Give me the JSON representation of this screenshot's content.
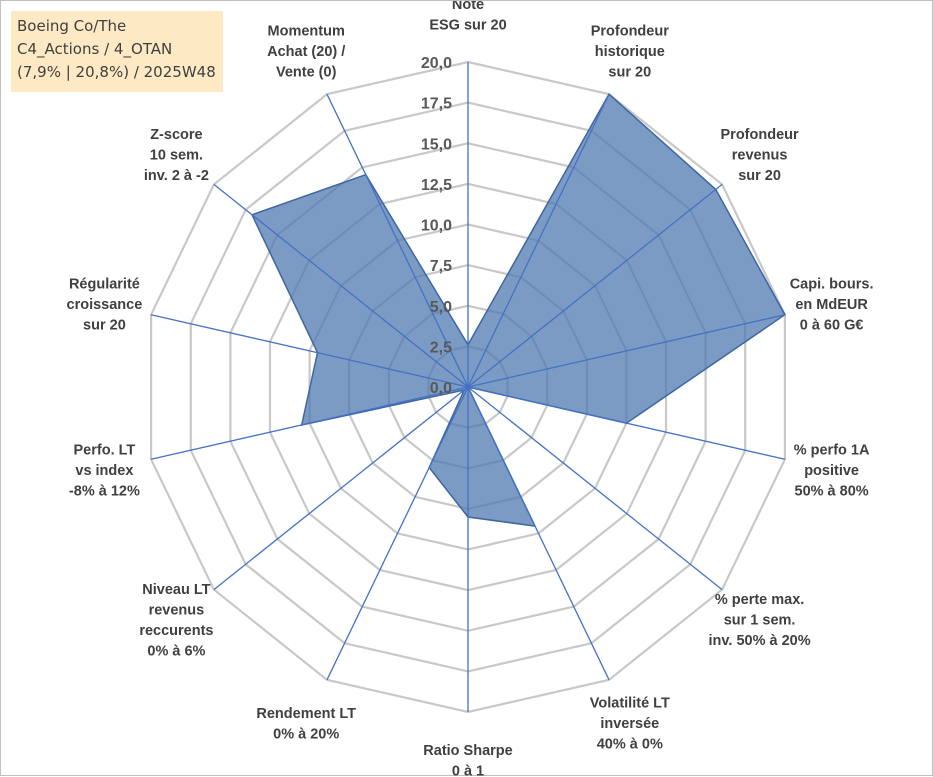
{
  "title_box": {
    "line1": "Boeing Co/The",
    "line2": "C4_Actions / 4_OTAN",
    "line3": "(7,9% | 20,8%) / 2025W48"
  },
  "chart_data": {
    "type": "radar",
    "range": [
      0,
      20
    ],
    "tick_step": 2.5,
    "ticks": [
      "0,0",
      "2,5",
      "5,0",
      "7,5",
      "10,0",
      "12,5",
      "15,0",
      "17,5",
      "20,0"
    ],
    "axes": [
      {
        "lines": [
          "Note",
          "ESG sur 20"
        ]
      },
      {
        "lines": [
          "Profondeur",
          "historique",
          "sur 20"
        ]
      },
      {
        "lines": [
          "Profondeur",
          "revenus",
          "sur 20"
        ]
      },
      {
        "lines": [
          "Capi. bours.",
          "en MdEUR",
          "0 à 60 G€"
        ]
      },
      {
        "lines": [
          "% perfo 1A",
          "positive",
          "50% à 80%"
        ]
      },
      {
        "lines": [
          "% perte max.",
          "sur 1 sem.",
          "inv. 50% à 20%"
        ]
      },
      {
        "lines": [
          "Volatilité LT",
          "inversée",
          "40% à 0%"
        ]
      },
      {
        "lines": [
          "Ratio Sharpe",
          "0 à 1"
        ]
      },
      {
        "lines": [
          "Rendement LT",
          "0% à 20%"
        ]
      },
      {
        "lines": [
          "Niveau LT",
          "revenus",
          "reccurents",
          "0% à 6%"
        ]
      },
      {
        "lines": [
          "Perfo. LT",
          "vs index",
          "-8% à 12%"
        ]
      },
      {
        "lines": [
          "Régularité",
          "croissance",
          "sur 20"
        ]
      },
      {
        "lines": [
          "Z-score",
          "10 sem.",
          "inv. 2 à -2"
        ]
      },
      {
        "lines": [
          "Momentum",
          "Achat (20) /",
          "Vente (0)"
        ]
      }
    ],
    "values": [
      2.6,
      20.0,
      19.5,
      20.0,
      10.0,
      0.0,
      9.5,
      8.0,
      5.5,
      0.3,
      10.5,
      9.5,
      17.0,
      14.5
    ],
    "colors": {
      "fill": "#4f79b0",
      "fill_opacity": 0.75,
      "stroke": "#3d66a3",
      "grid": "#c8c8c8",
      "spoke": "#4472c4"
    }
  }
}
